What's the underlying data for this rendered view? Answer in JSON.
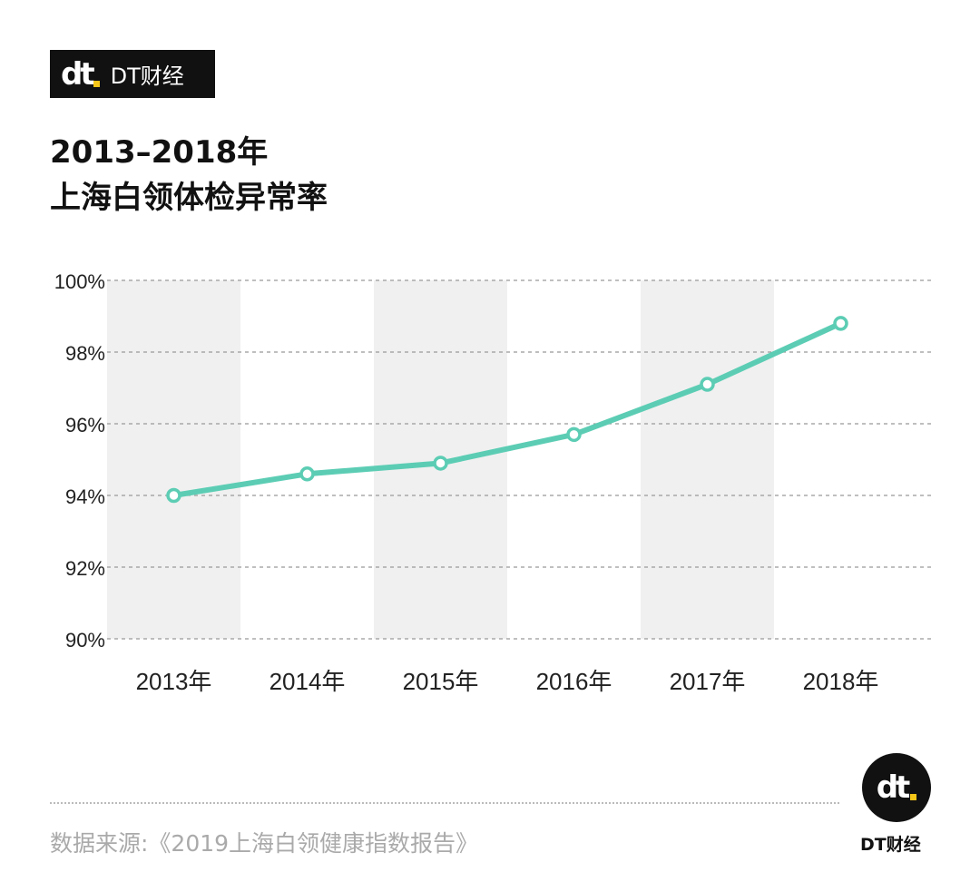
{
  "brand": {
    "mark": "dt",
    "name": "DT财经"
  },
  "title_line1": "2013–2018年",
  "title_line2": "上海白领体检异常率",
  "chart_data": {
    "type": "line",
    "title": "2013–2018年 上海白领体检异常率",
    "categories": [
      "2013年",
      "2014年",
      "2015年",
      "2016年",
      "2017年",
      "2018年"
    ],
    "values": [
      94.0,
      94.6,
      94.9,
      95.7,
      97.1,
      98.8
    ],
    "ylim": [
      90,
      100
    ],
    "yticks": [
      90,
      92,
      94,
      96,
      98,
      100
    ],
    "ytick_labels": [
      "90%",
      "92%",
      "94%",
      "96%",
      "98%",
      "100%"
    ],
    "grid": "horizontal dashed",
    "alternating_column_bands": true,
    "line_color": "#5ccdb4",
    "band_color": "#f0f0f0"
  },
  "footer": {
    "source": "数据来源:《2019上海白领健康指数报告》",
    "logo_mark": "dt",
    "logo_name": "DT财经"
  }
}
